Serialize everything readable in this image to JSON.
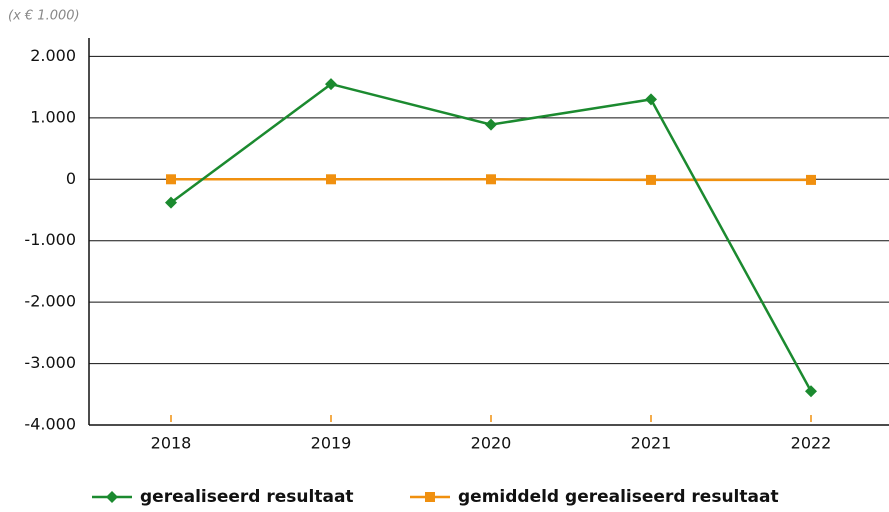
{
  "chart_data": {
    "type": "line",
    "unit_note": "(x € 1.000)",
    "categories": [
      "2018",
      "2019",
      "2020",
      "2021",
      "2022"
    ],
    "series": [
      {
        "name": "gerealiseerd resultaat",
        "color": "#1b8a2f",
        "marker": "diamond",
        "values": [
          -380,
          1550,
          890,
          1300,
          -3450
        ]
      },
      {
        "name": "gemiddeld gerealiseerd resultaat",
        "color": "#f0900f",
        "marker": "square",
        "values": [
          0,
          0,
          0,
          -10,
          -10
        ]
      }
    ],
    "ylim": [
      -4000,
      2300
    ],
    "yticks": [
      {
        "value": -4000,
        "label": "-4.000"
      },
      {
        "value": -3000,
        "label": "-3.000"
      },
      {
        "value": -2000,
        "label": "-2.000"
      },
      {
        "value": -1000,
        "label": "-1.000"
      },
      0,
      {
        "value": 1000,
        "label": "1.000"
      },
      {
        "value": 2000,
        "label": "2.000"
      }
    ],
    "grid": true
  }
}
